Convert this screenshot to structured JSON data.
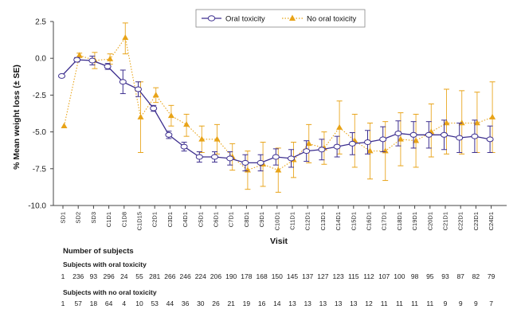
{
  "chart_data": {
    "type": "line",
    "ylabel": "% Mean weight loss (± SE)",
    "xlabel": "Visit",
    "ylim": [
      -10.0,
      2.5
    ],
    "yticks": [
      "2.5",
      "0.0",
      "-2.5",
      "-5.0",
      "-7.5",
      "-10.0"
    ],
    "ytick_values": [
      2.5,
      0.0,
      -2.5,
      -5.0,
      -7.5,
      -10.0
    ],
    "categories": [
      "SD1",
      "SD2",
      "SD3",
      "C1D1",
      "C1D8",
      "C1D15",
      "C2D1",
      "C3D1",
      "C4D1",
      "C5D1",
      "C6D1",
      "C7D1",
      "C8D1",
      "C9D1",
      "C10D1",
      "C11D1",
      "C12D1",
      "C13D1",
      "C14D1",
      "C15D1",
      "C16D1",
      "C17D1",
      "C18D1",
      "C19D1",
      "C20D1",
      "C21D1",
      "C22D1",
      "C23D1",
      "C24D1"
    ],
    "legend_position": "top-center",
    "series": [
      {
        "name": "Oral toxicity",
        "color": "#3d2f8f",
        "style": "solid",
        "marker": "circle",
        "values": [
          -1.2,
          -0.1,
          -0.15,
          -0.55,
          -1.6,
          -2.1,
          -3.4,
          -5.2,
          -6.0,
          -6.7,
          -6.7,
          -6.8,
          -7.1,
          -7.1,
          -6.7,
          -6.8,
          -6.3,
          -6.2,
          -6.0,
          -5.8,
          -5.7,
          -5.5,
          -5.1,
          -5.2,
          -5.2,
          -5.2,
          -5.4,
          -5.3,
          -5.5
        ],
        "se_low": [
          null,
          -0.25,
          -0.45,
          -0.75,
          -2.4,
          -2.6,
          -3.6,
          -5.45,
          -6.3,
          -7.05,
          -7.05,
          -7.25,
          -7.65,
          -7.65,
          -7.25,
          -7.4,
          -7.0,
          -6.9,
          -6.7,
          -6.55,
          -6.5,
          -6.35,
          -5.95,
          -6.1,
          -6.1,
          -6.2,
          -6.4,
          -6.4,
          -6.4
        ],
        "se_high": [
          null,
          0.05,
          0.15,
          -0.35,
          -0.8,
          -1.6,
          -3.2,
          -4.95,
          -5.7,
          -6.35,
          -6.35,
          -6.35,
          -6.55,
          -6.55,
          -6.15,
          -6.2,
          -5.6,
          -5.5,
          -5.3,
          -5.05,
          -4.9,
          -4.65,
          -4.25,
          -4.3,
          -4.3,
          -4.2,
          -4.4,
          -4.2,
          -4.6
        ]
      },
      {
        "name": "No oral toxicity",
        "color": "#e8a317",
        "style": "dotted",
        "marker": "triangle",
        "values": [
          -4.6,
          0.2,
          -0.15,
          -0.05,
          1.4,
          -4.0,
          -2.5,
          -3.9,
          -4.5,
          -5.5,
          -5.5,
          -6.7,
          -7.6,
          -7.2,
          -7.6,
          -6.9,
          -5.8,
          -6.1,
          -4.7,
          -5.6,
          -6.3,
          -6.3,
          -5.5,
          -5.6,
          -5.0,
          -4.4,
          -4.4,
          -4.4,
          -4.0
        ],
        "se_low": [
          null,
          0.05,
          -0.7,
          -0.4,
          0.3,
          -6.4,
          -3.0,
          -4.6,
          -5.3,
          -6.4,
          -6.5,
          -7.6,
          -8.9,
          -8.7,
          -9.1,
          -8.1,
          -7.1,
          -7.2,
          -6.5,
          -7.4,
          -8.2,
          -8.3,
          -7.3,
          -7.4,
          -6.7,
          -6.5,
          -6.5,
          -6.4,
          -6.4
        ],
        "se_high": [
          null,
          0.35,
          0.4,
          0.3,
          2.4,
          -1.6,
          -2.0,
          -3.2,
          -3.8,
          -4.6,
          -4.5,
          -5.8,
          -6.3,
          -5.7,
          -6.1,
          -5.7,
          -4.5,
          -5.0,
          -2.9,
          -3.8,
          -4.4,
          -4.3,
          -3.7,
          -3.8,
          -3.1,
          -2.1,
          -2.2,
          -2.3,
          -1.6
        ]
      }
    ]
  },
  "subjects": {
    "title": "Number of subjects",
    "oral_label": "Subjects with oral toxicity",
    "oral_counts": [
      "1",
      "236",
      "93",
      "296",
      "24",
      "55",
      "281",
      "266",
      "246",
      "224",
      "206",
      "190",
      "178",
      "168",
      "150",
      "145",
      "137",
      "127",
      "123",
      "115",
      "112",
      "107",
      "100",
      "98",
      "95",
      "93",
      "87",
      "82",
      "79"
    ],
    "no_oral_label": "Subjects with no oral toxicity",
    "no_oral_counts": [
      "1",
      "57",
      "18",
      "64",
      "4",
      "10",
      "53",
      "44",
      "36",
      "30",
      "26",
      "21",
      "19",
      "16",
      "14",
      "13",
      "13",
      "13",
      "13",
      "13",
      "12",
      "11",
      "11",
      "11",
      "11",
      "9",
      "9",
      "9",
      "7"
    ]
  }
}
